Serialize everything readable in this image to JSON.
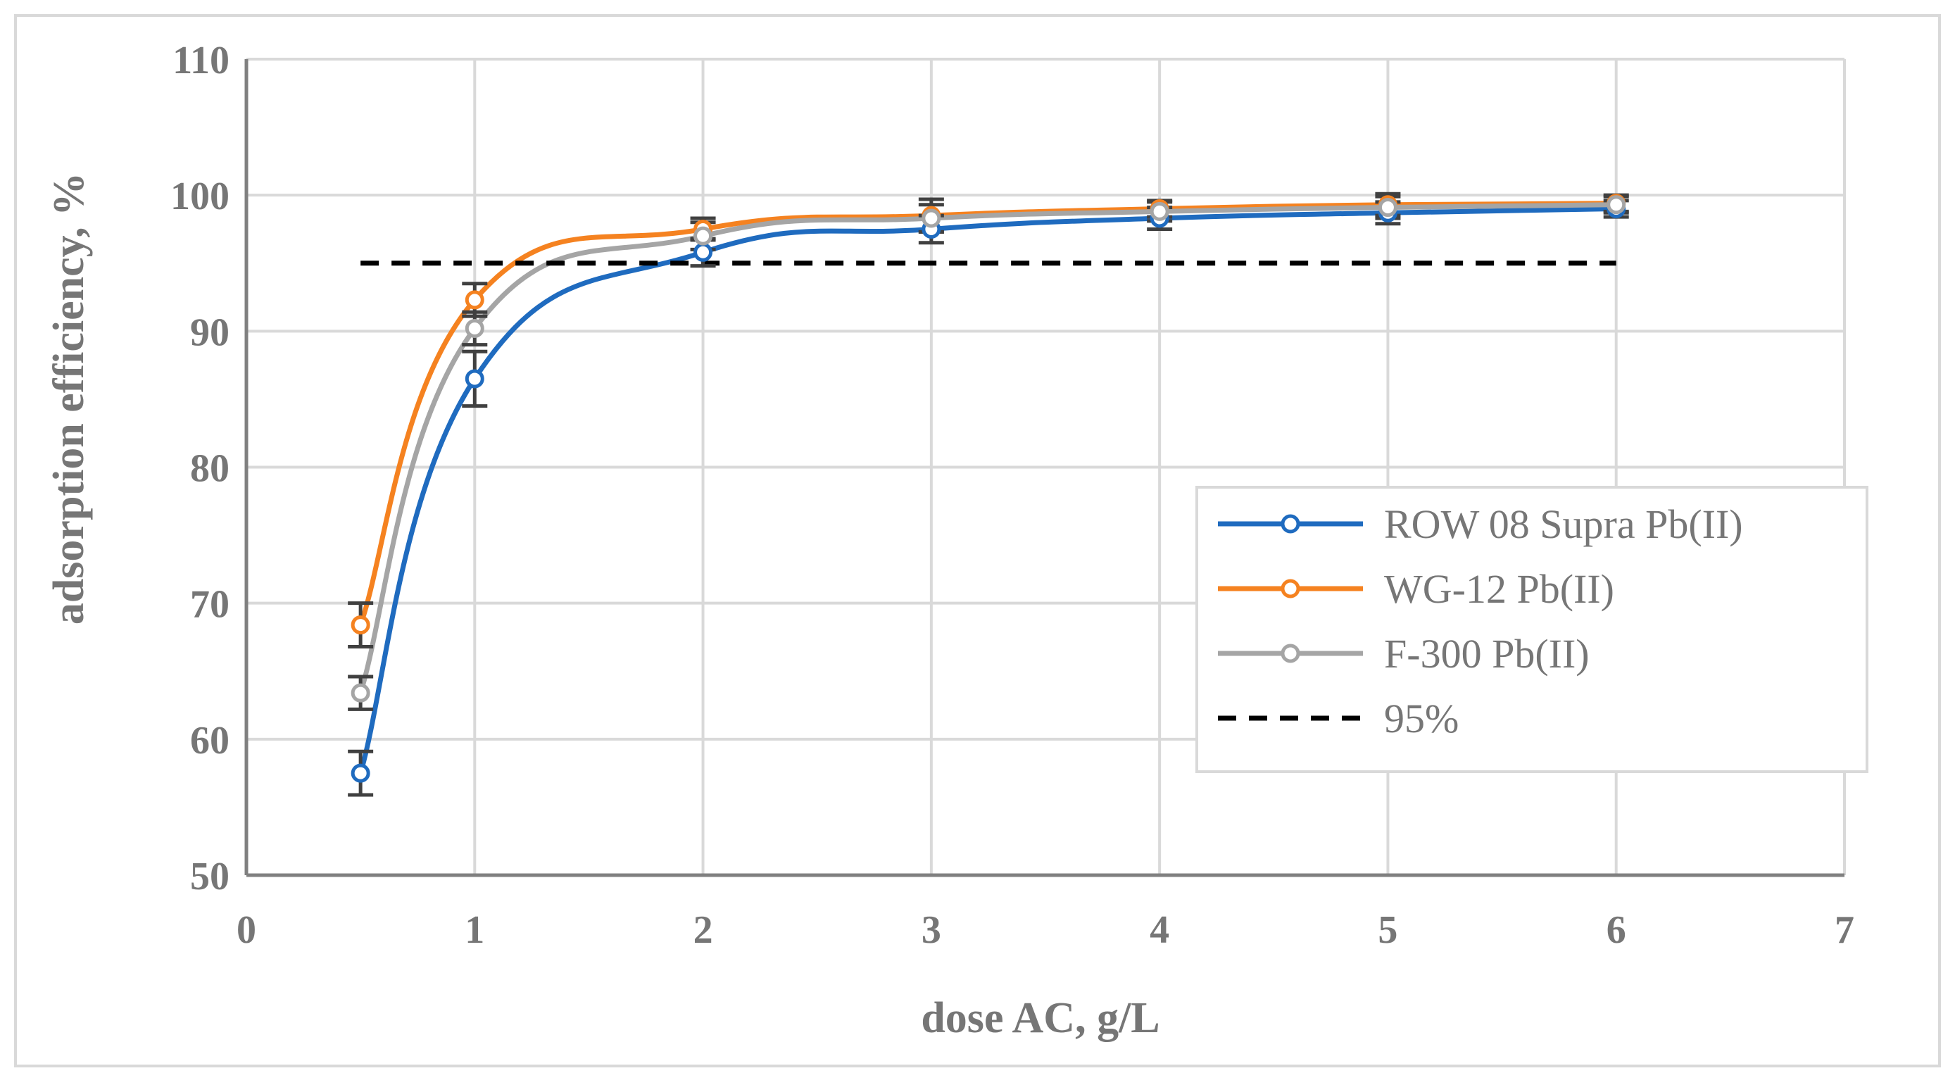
{
  "chart_data": {
    "type": "line",
    "title": "",
    "xlabel": "dose AC, g/L",
    "ylabel": "adsorption efficiency, %",
    "xlim": [
      0,
      7
    ],
    "ylim": [
      50,
      110
    ],
    "x_ticks": [
      "0",
      "1",
      "2",
      "3",
      "4",
      "5",
      "6",
      "7"
    ],
    "y_ticks": [
      "50",
      "60",
      "70",
      "80",
      "90",
      "100",
      "110"
    ],
    "grid": true,
    "legend_position": "right",
    "series": [
      {
        "name": "ROW 08 Supra Pb(II)",
        "color": "#1f6bbf",
        "marker": "open-circle",
        "x": [
          0.5,
          1,
          2,
          3,
          4,
          5,
          6
        ],
        "y": [
          57.5,
          86.5,
          95.8,
          97.5,
          98.3,
          98.7,
          99.0
        ],
        "err": [
          1.6,
          2.0,
          1.0,
          1.0,
          0.8,
          0.8,
          0.6
        ]
      },
      {
        "name": "WG-12 Pb(II)",
        "color": "#f58220",
        "marker": "open-circle",
        "x": [
          0.5,
          1,
          2,
          3,
          4,
          5,
          6
        ],
        "y": [
          68.4,
          92.3,
          97.5,
          98.5,
          99.0,
          99.3,
          99.4
        ],
        "err": [
          1.6,
          1.2,
          0.8,
          1.2,
          0.6,
          0.8,
          0.6
        ]
      },
      {
        "name": "F-300 Pb(II)",
        "color": "#a5a5a5",
        "marker": "open-circle",
        "x": [
          0.5,
          1,
          2,
          3,
          4,
          5,
          6
        ],
        "y": [
          63.4,
          90.2,
          97.0,
          98.3,
          98.8,
          99.1,
          99.3
        ],
        "err": [
          1.2,
          1.2,
          1.0,
          1.0,
          0.7,
          0.8,
          0.6
        ]
      },
      {
        "name": "95%",
        "color": "#000000",
        "line_style": "dashed",
        "x": [
          0.5,
          6
        ],
        "y": [
          95,
          95
        ]
      }
    ]
  }
}
